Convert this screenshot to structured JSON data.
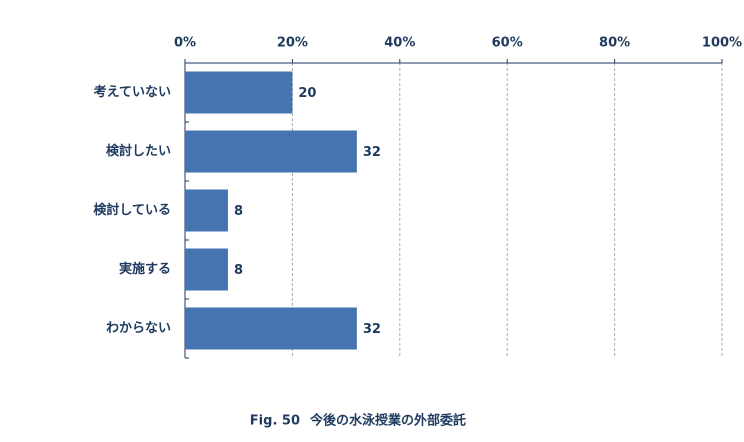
{
  "chart_data": {
    "type": "bar",
    "orientation": "horizontal",
    "figure_label": "Fig. 50",
    "title": "今後の水泳授業の外部委託",
    "categories": [
      "考えていない",
      "検討したい",
      "検討している",
      "実施する",
      "わからない"
    ],
    "values": [
      20,
      32,
      8,
      8,
      32
    ],
    "color": "#4674b0",
    "xlim": [
      0,
      100
    ],
    "xticks": [
      {
        "value": 0,
        "label": "0%"
      },
      {
        "value": 20,
        "label": "20%"
      },
      {
        "value": 40,
        "label": "40%"
      },
      {
        "value": 60,
        "label": "60%"
      },
      {
        "value": 80,
        "label": "80%"
      },
      {
        "value": 100,
        "label": "100%"
      }
    ],
    "grid": true
  }
}
